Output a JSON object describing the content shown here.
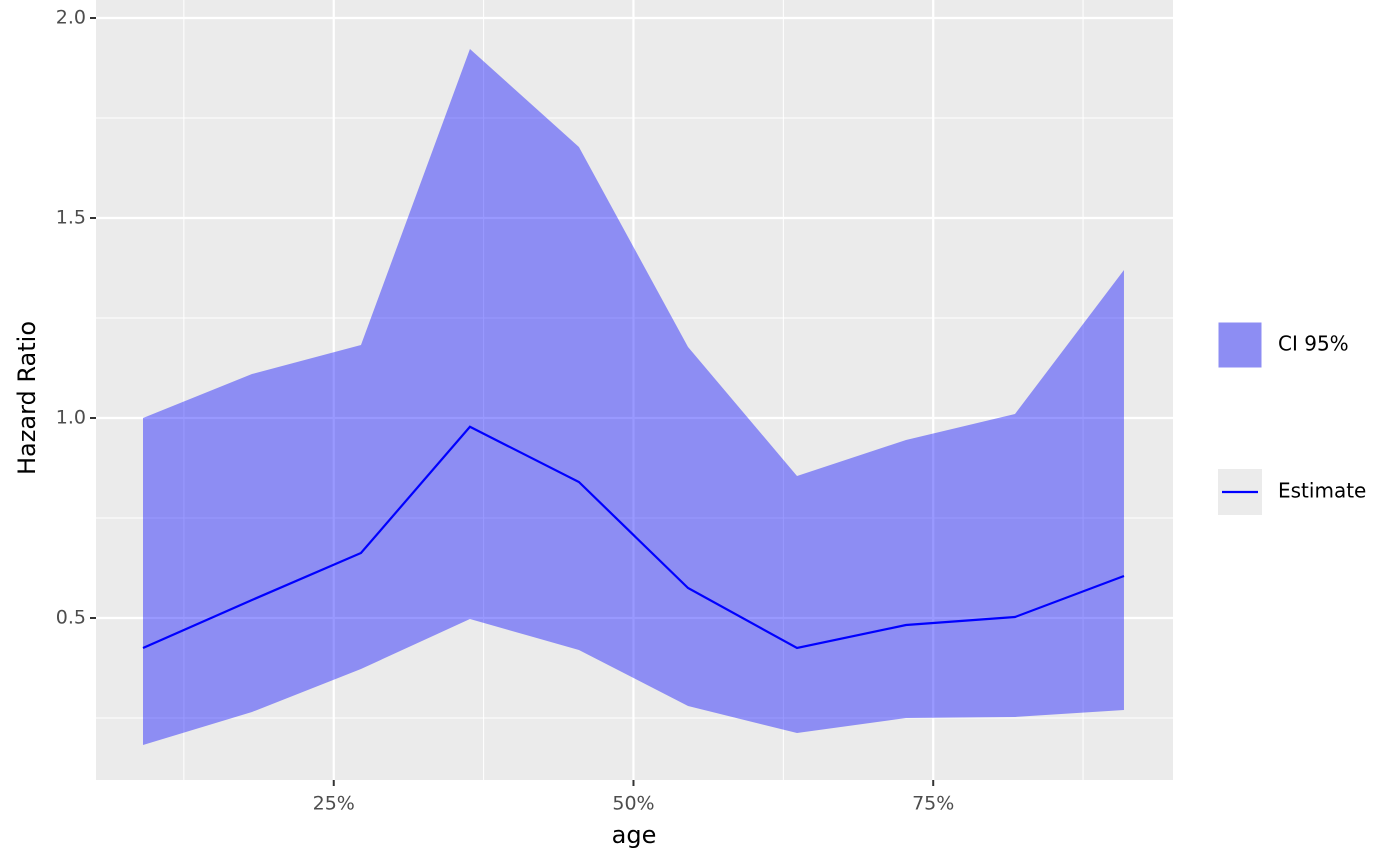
{
  "chart_data": {
    "type": "line",
    "x_label": "age",
    "y_label": "Hazard Ratio",
    "x": [
      9.09,
      18.18,
      27.27,
      36.36,
      45.45,
      54.55,
      63.64,
      72.73,
      81.82,
      90.91
    ],
    "series": [
      {
        "name": "Estimate",
        "color": "#0000ff",
        "values": [
          0.425,
          0.545,
          0.6625,
          0.978,
          0.84,
          0.575,
          0.425,
          0.4825,
          0.5025,
          0.605
        ]
      }
    ],
    "band": {
      "name": "CI 95%",
      "color": "#0000ff",
      "opacity": 0.4,
      "upper": [
        1.0,
        1.11,
        1.1825,
        1.9225,
        1.6775,
        1.1775,
        0.855,
        0.945,
        1.01,
        1.37
      ],
      "lower": [
        0.1825,
        0.265,
        0.3725,
        0.4975,
        0.42,
        0.28,
        0.2125,
        0.25,
        0.2525,
        0.27
      ]
    },
    "xlim": [
      5.17,
      95.0
    ],
    "xticks": [
      {
        "value": 25,
        "label": "25%"
      },
      {
        "value": 50,
        "label": "50%"
      },
      {
        "value": 75,
        "label": "75%"
      }
    ],
    "ylim": [
      0.095,
      2.045
    ],
    "yticks": [
      {
        "value": 0.5,
        "label": "0.5"
      },
      {
        "value": 1.0,
        "label": "1.0"
      },
      {
        "value": 1.5,
        "label": "1.5"
      },
      {
        "value": 2.0,
        "label": "2.0"
      }
    ],
    "grid": true,
    "legend": "right"
  }
}
